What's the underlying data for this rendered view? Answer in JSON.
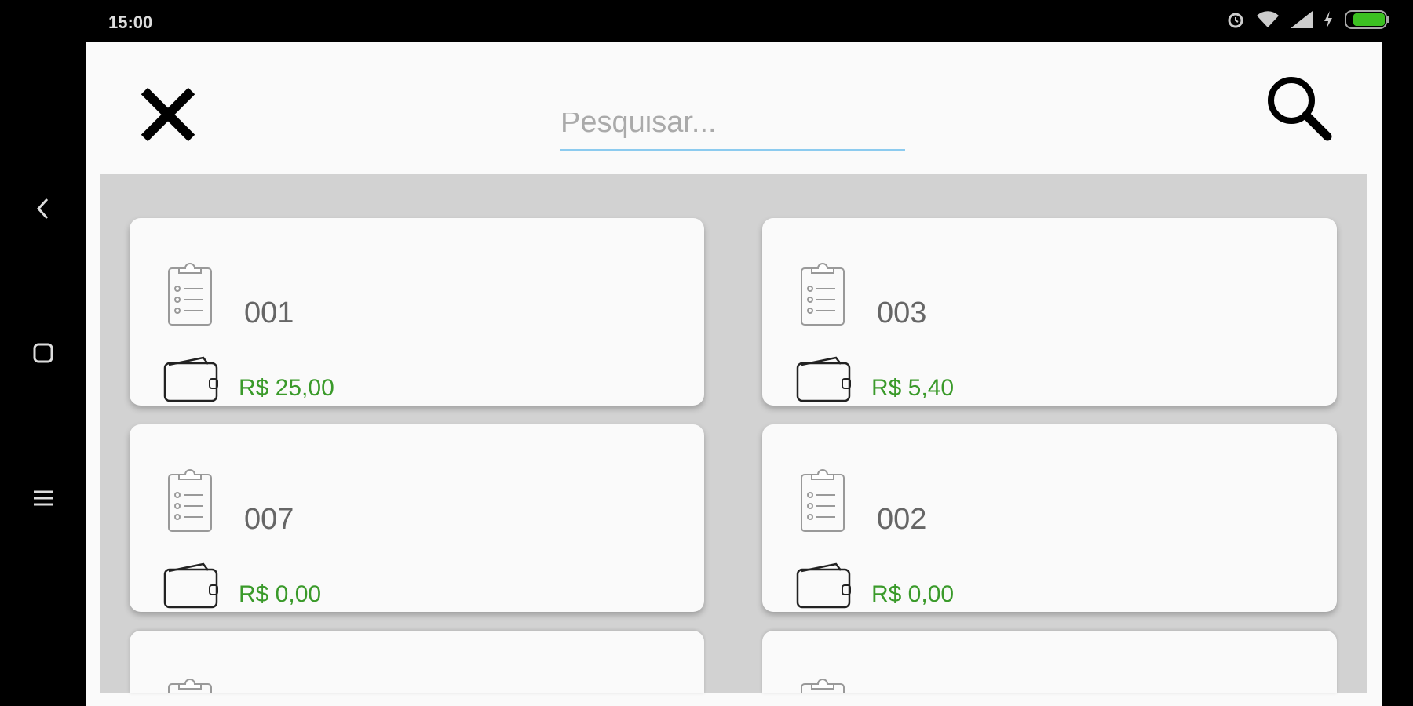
{
  "status_bar": {
    "time": "15:00",
    "icons": [
      "alarm-icon",
      "wifi-icon",
      "signal-icon",
      "charging-icon",
      "battery-icon"
    ],
    "battery_color": "#3cc021"
  },
  "nav_bar": {
    "icons": [
      "back-icon",
      "home-square-icon",
      "menu-icon"
    ]
  },
  "header": {
    "close_icon": "close-icon",
    "search_placeholder": "Pesquisar...",
    "search_value": "",
    "search_icon": "search-icon",
    "underline_color": "#8ccbef"
  },
  "accent_price_color": "#3a9a2a",
  "cards": [
    {
      "number": "001",
      "price": "R$ 25,00"
    },
    {
      "number": "003",
      "price": "R$ 5,40"
    },
    {
      "number": "007",
      "price": "R$ 0,00"
    },
    {
      "number": "002",
      "price": "R$ 0,00"
    },
    {
      "number": "",
      "price": ""
    },
    {
      "number": "",
      "price": ""
    }
  ]
}
